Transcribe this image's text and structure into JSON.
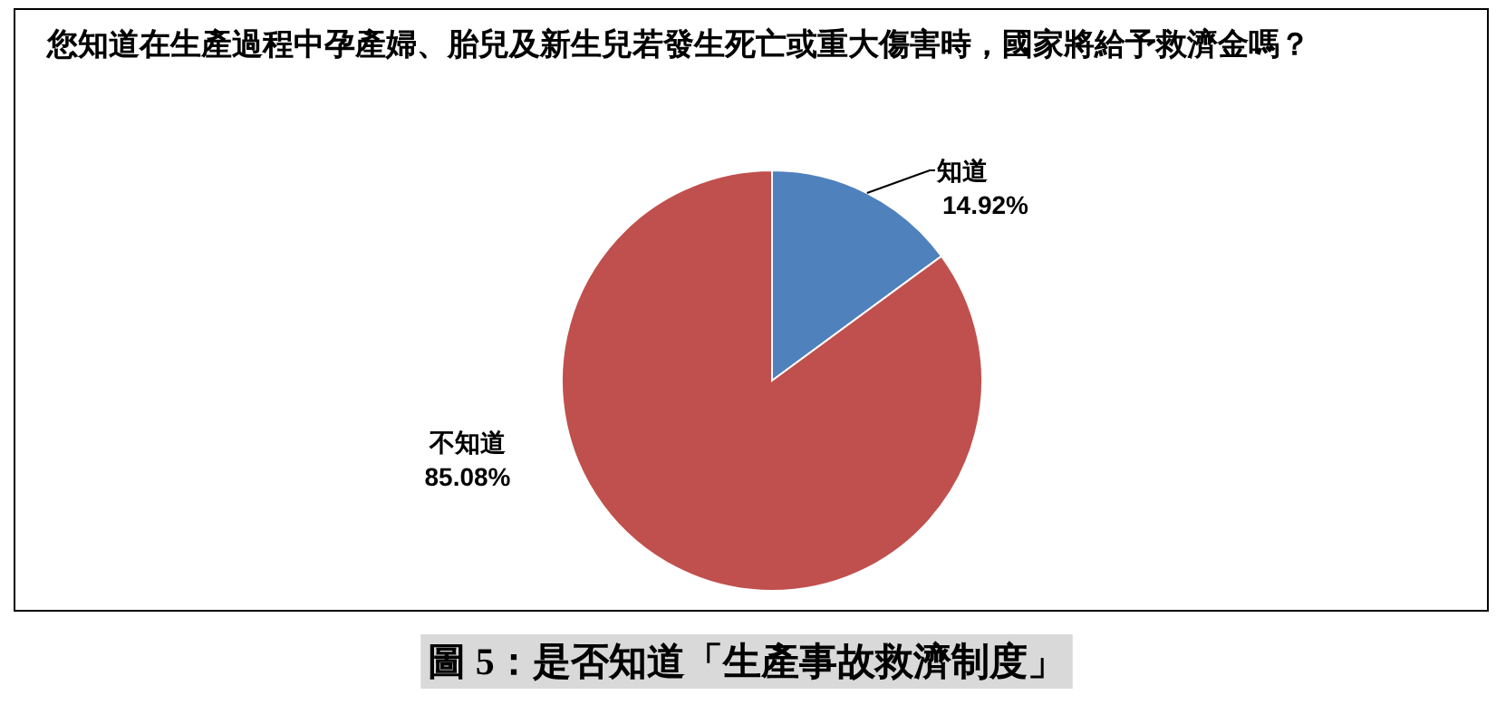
{
  "chart_data": {
    "type": "pie",
    "title": "您知道在生產過程中孕產婦、胎兒及新生兒若發生死亡或重大傷害時，國家將給予救濟金嗎？",
    "categories": [
      "知道",
      "不知道"
    ],
    "values": [
      14.92,
      85.08
    ],
    "value_labels": [
      "14.92%",
      "85.08%"
    ],
    "colors": [
      "#4f81bd",
      "#c0504d"
    ],
    "legend": false,
    "annotations": [
      "圖 5：是否知道「生產事故救濟制度」"
    ]
  }
}
